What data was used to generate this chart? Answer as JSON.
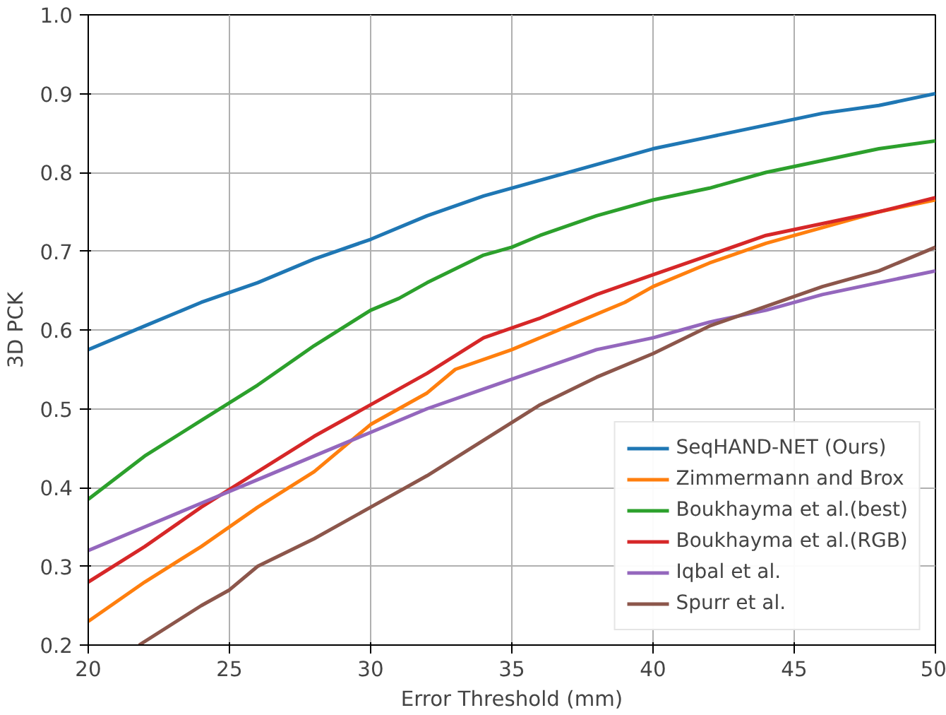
{
  "chart_data": {
    "type": "line",
    "xlabel": "Error Threshold (mm)",
    "ylabel": "3D PCK",
    "xlim": [
      20,
      50
    ],
    "ylim": [
      0.2,
      1.0
    ],
    "xticks": [
      20,
      25,
      30,
      35,
      40,
      45,
      50
    ],
    "yticks": [
      0.2,
      0.3,
      0.4,
      0.5,
      0.6,
      0.7,
      0.8,
      0.9,
      {
        "value": 1.0,
        "label": "1.0"
      }
    ],
    "grid": true,
    "legend": "bottom right",
    "line_style": "solid",
    "marker": "none",
    "series": [
      {
        "name": "SeqHAND-NET (Ours)",
        "color": "#1f77b4",
        "x": [
          20,
          22,
          24,
          26,
          28,
          30,
          32,
          34,
          36,
          38,
          40,
          42,
          44,
          46,
          48,
          50
        ],
        "values": [
          0.575,
          0.605,
          0.635,
          0.66,
          0.69,
          0.715,
          0.745,
          0.77,
          0.79,
          0.81,
          0.83,
          0.845,
          0.86,
          0.875,
          0.885,
          0.9
        ]
      },
      {
        "name": "Zimmermann and Brox",
        "color": "#ff7f0e",
        "x": [
          20,
          22,
          24,
          26,
          28,
          30,
          32,
          33,
          35,
          37,
          39,
          40,
          42,
          44,
          46,
          48,
          50
        ],
        "values": [
          0.23,
          0.28,
          0.325,
          0.375,
          0.42,
          0.48,
          0.52,
          0.55,
          0.575,
          0.605,
          0.635,
          0.655,
          0.685,
          0.71,
          0.73,
          0.75,
          0.765
        ]
      },
      {
        "name": "Boukhayma et al.(best)",
        "color": "#2ca02c",
        "x": [
          20,
          22,
          24,
          26,
          28,
          30,
          31,
          32,
          34,
          35,
          36,
          38,
          40,
          42,
          44,
          46,
          48,
          50
        ],
        "values": [
          0.385,
          0.44,
          0.485,
          0.53,
          0.58,
          0.625,
          0.64,
          0.66,
          0.695,
          0.705,
          0.72,
          0.745,
          0.765,
          0.78,
          0.8,
          0.815,
          0.83,
          0.84
        ]
      },
      {
        "name": "Boukhayma et al.(RGB)",
        "color": "#d62728",
        "x": [
          20,
          22,
          24,
          26,
          28,
          30,
          32,
          34,
          36,
          38,
          40,
          42,
          44,
          46,
          48,
          50
        ],
        "values": [
          0.28,
          0.325,
          0.375,
          0.42,
          0.465,
          0.505,
          0.545,
          0.59,
          0.615,
          0.645,
          0.67,
          0.695,
          0.72,
          0.735,
          0.75,
          0.768
        ]
      },
      {
        "name": "Iqbal et al.",
        "color": "#9467bd",
        "x": [
          20,
          22,
          24,
          26,
          28,
          30,
          32,
          34,
          36,
          38,
          40,
          42,
          44,
          46,
          48,
          50
        ],
        "values": [
          0.32,
          0.35,
          0.38,
          0.41,
          0.44,
          0.47,
          0.5,
          0.525,
          0.55,
          0.575,
          0.59,
          0.61,
          0.625,
          0.645,
          0.66,
          0.675
        ]
      },
      {
        "name": "Spurr et al.",
        "color": "#8c564b",
        "x": [
          21.8,
          24,
          25,
          26,
          28,
          30,
          32,
          34,
          36,
          38,
          40,
          42,
          44,
          46,
          48,
          50
        ],
        "values": [
          0.2,
          0.25,
          0.27,
          0.3,
          0.335,
          0.375,
          0.415,
          0.46,
          0.505,
          0.54,
          0.57,
          0.605,
          0.63,
          0.655,
          0.675,
          0.705
        ]
      }
    ]
  }
}
